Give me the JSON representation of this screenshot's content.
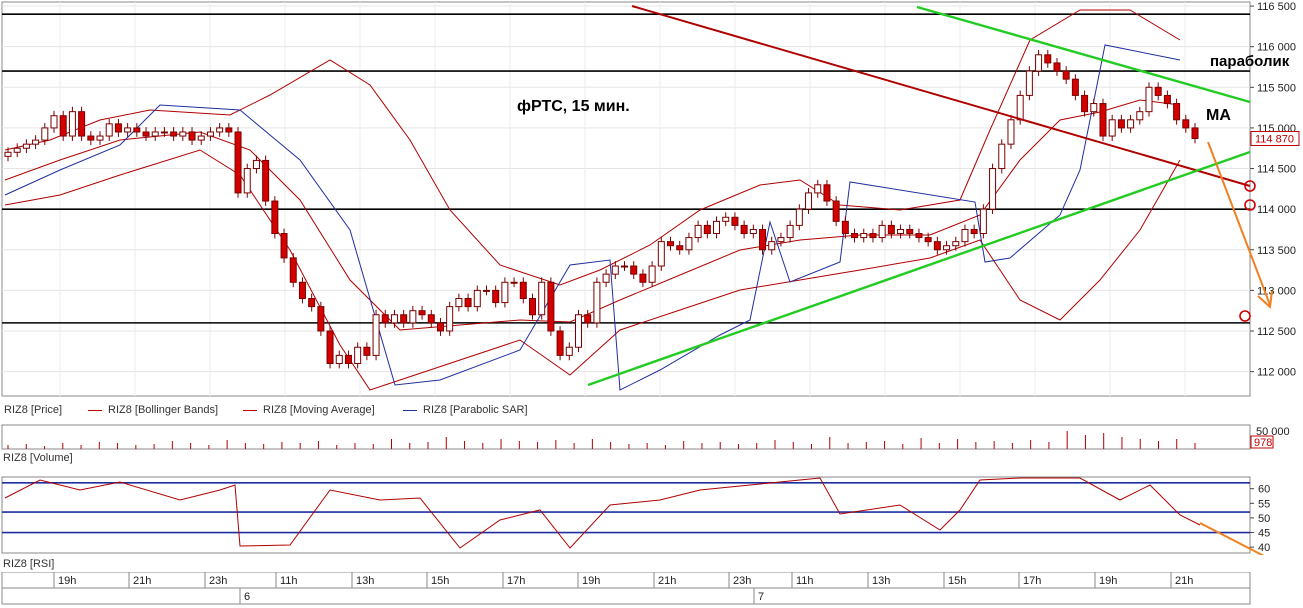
{
  "price_panel": {
    "y_ticks": [
      "116 500",
      "116 000",
      "115 500",
      "115 000",
      "114 500",
      "114 000",
      "113 500",
      "113 000",
      "112 500",
      "112 000"
    ],
    "last_price": "114 870",
    "legend": [
      {
        "label": "RIZ8 [Price]",
        "color": "#c00000"
      },
      {
        "label": "RIZ8 [Bollinger Bands]",
        "color": "#c00000"
      },
      {
        "label": "RIZ8 [Moving Average]",
        "color": "#c00000"
      },
      {
        "label": "RIZ8 [Parabolic SAR]",
        "color": "#1f2fa0"
      }
    ],
    "annotations": {
      "title": "фРТС, 15 мин.",
      "parabolic": "параболик",
      "ma": "МА"
    }
  },
  "volume_panel": {
    "label": "RIZ8 [Volume]",
    "y_tick": "50 000",
    "last_value": "978"
  },
  "rsi_panel": {
    "label": "RIZ8 [RSI]",
    "y_ticks": [
      "60",
      "55",
      "50",
      "45",
      "40"
    ]
  },
  "time_axis": {
    "hours": [
      "19h",
      "21h",
      "23h",
      "11h",
      "13h",
      "15h",
      "17h",
      "19h",
      "21h",
      "23h",
      "11h",
      "13h",
      "15h",
      "17h",
      "19h",
      "21h"
    ],
    "days": [
      "6",
      "7"
    ]
  },
  "chart_data": {
    "type": "candlestick",
    "instrument": "RIZ8",
    "ylim": [
      111700,
      116550
    ],
    "close": [
      114700,
      114750,
      114800,
      114850,
      115000,
      115150,
      114900,
      115200,
      114900,
      114850,
      114900,
      115050,
      114950,
      115000,
      114950,
      114900,
      114950,
      114950,
      114900,
      114950,
      114850,
      114900,
      114950,
      115000,
      114950,
      114200,
      114500,
      114600,
      114100,
      113700,
      113400,
      113100,
      112900,
      112800,
      112500,
      112100,
      112200,
      112100,
      112300,
      112200,
      112700,
      112600,
      112700,
      112600,
      112750,
      112700,
      112600,
      112500,
      112800,
      112900,
      112800,
      113000,
      113000,
      112850,
      113100,
      113100,
      112900,
      112700,
      113100,
      112500,
      112200,
      112300,
      112700,
      112600,
      113100,
      113200,
      113300,
      113300,
      113200,
      113100,
      113300,
      113600,
      113550,
      113500,
      113650,
      113800,
      113700,
      113850,
      113900,
      113800,
      113700,
      113750,
      113500,
      113600,
      113650,
      113800,
      114000,
      114200,
      114300,
      114100,
      113850,
      113700,
      113650,
      113700,
      113650,
      113800,
      113700,
      113750,
      113700,
      113650,
      113600,
      113500,
      113550,
      113600,
      113750,
      113700,
      114000,
      114500,
      114800,
      115100,
      115400,
      115700,
      115900,
      115800,
      115700,
      115600,
      115400,
      115200,
      115300,
      114900,
      115100,
      115000,
      115100,
      115200,
      115500,
      115400,
      115300,
      115100,
      115000,
      114870
    ],
    "parabolic_sar_polyline": [
      [
        5,
        195
      ],
      [
        60,
        170
      ],
      [
        120,
        145
      ],
      [
        160,
        105
      ],
      [
        240,
        110
      ],
      [
        300,
        160
      ],
      [
        350,
        230
      ],
      [
        395,
        385
      ],
      [
        440,
        380
      ],
      [
        520,
        350
      ],
      [
        570,
        265
      ],
      [
        610,
        260
      ],
      [
        620,
        390
      ],
      [
        660,
        370
      ],
      [
        720,
        335
      ],
      [
        750,
        320
      ],
      [
        770,
        222
      ],
      [
        790,
        282
      ],
      [
        840,
        262
      ],
      [
        850,
        182
      ],
      [
        975,
        202
      ],
      [
        985,
        262
      ],
      [
        1010,
        258
      ],
      [
        1060,
        215
      ],
      [
        1080,
        170
      ],
      [
        1105,
        45
      ],
      [
        1180,
        60
      ]
    ],
    "bollinger_upper_polyline": [
      [
        5,
        150
      ],
      [
        50,
        140
      ],
      [
        100,
        120
      ],
      [
        150,
        110
      ],
      [
        230,
        115
      ],
      [
        270,
        95
      ],
      [
        330,
        60
      ],
      [
        370,
        85
      ],
      [
        410,
        140
      ],
      [
        450,
        210
      ],
      [
        500,
        265
      ],
      [
        560,
        285
      ],
      [
        600,
        270
      ],
      [
        650,
        245
      ],
      [
        700,
        210
      ],
      [
        760,
        185
      ],
      [
        800,
        180
      ],
      [
        840,
        205
      ],
      [
        900,
        210
      ],
      [
        960,
        200
      ],
      [
        990,
        130
      ],
      [
        1030,
        40
      ],
      [
        1080,
        10
      ],
      [
        1130,
        10
      ],
      [
        1180,
        40
      ]
    ],
    "bollinger_lower_polyline": [
      [
        5,
        205
      ],
      [
        60,
        195
      ],
      [
        120,
        175
      ],
      [
        200,
        150
      ],
      [
        240,
        175
      ],
      [
        290,
        250
      ],
      [
        340,
        345
      ],
      [
        370,
        390
      ],
      [
        400,
        380
      ],
      [
        460,
        360
      ],
      [
        520,
        340
      ],
      [
        570,
        375
      ],
      [
        620,
        330
      ],
      [
        680,
        310
      ],
      [
        740,
        290
      ],
      [
        800,
        280
      ],
      [
        860,
        270
      ],
      [
        930,
        258
      ],
      [
        980,
        240
      ],
      [
        1020,
        300
      ],
      [
        1060,
        320
      ],
      [
        1100,
        280
      ],
      [
        1140,
        230
      ],
      [
        1180,
        160
      ]
    ],
    "moving_average_polyline": [
      [
        5,
        180
      ],
      [
        60,
        160
      ],
      [
        120,
        140
      ],
      [
        200,
        132
      ],
      [
        250,
        150
      ],
      [
        300,
        200
      ],
      [
        350,
        280
      ],
      [
        400,
        330
      ],
      [
        460,
        325
      ],
      [
        520,
        320
      ],
      [
        570,
        322
      ],
      [
        620,
        300
      ],
      [
        680,
        275
      ],
      [
        740,
        250
      ],
      [
        800,
        240
      ],
      [
        860,
        235
      ],
      [
        930,
        235
      ],
      [
        980,
        215
      ],
      [
        1020,
        160
      ],
      [
        1060,
        120
      ],
      [
        1100,
        112
      ],
      [
        1140,
        100
      ],
      [
        1180,
        105
      ]
    ],
    "horizontal_levels": [
      116400,
      115700,
      114000,
      112600
    ],
    "rsi_polyline": [
      [
        5,
        498
      ],
      [
        40,
        480
      ],
      [
        80,
        490
      ],
      [
        120,
        482
      ],
      [
        180,
        500
      ],
      [
        220,
        490
      ],
      [
        235,
        485
      ],
      [
        240,
        546
      ],
      [
        290,
        545
      ],
      [
        330,
        490
      ],
      [
        380,
        500
      ],
      [
        420,
        498
      ],
      [
        460,
        548
      ],
      [
        500,
        520
      ],
      [
        540,
        510
      ],
      [
        570,
        548
      ],
      [
        610,
        505
      ],
      [
        660,
        500
      ],
      [
        700,
        490
      ],
      [
        750,
        485
      ],
      [
        800,
        480
      ],
      [
        820,
        478
      ],
      [
        840,
        514
      ],
      [
        900,
        505
      ],
      [
        940,
        530
      ],
      [
        960,
        510
      ],
      [
        980,
        480
      ],
      [
        1020,
        478
      ],
      [
        1080,
        478
      ],
      [
        1120,
        500
      ],
      [
        1150,
        485
      ],
      [
        1180,
        515
      ],
      [
        1200,
        525
      ]
    ],
    "volume_bars": [
      0.2,
      0.25,
      0.15,
      0.3,
      0.2,
      0.35,
      0.3,
      0.2,
      0.25,
      0.4,
      0.3,
      0.2,
      0.45,
      0.3,
      0.25,
      0.35,
      0.3,
      0.4,
      0.2,
      0.3,
      0.25,
      0.5,
      0.3,
      0.35,
      0.6,
      0.4,
      0.3,
      0.5,
      0.4,
      0.35,
      0.45,
      0.3,
      0.5,
      0.35,
      0.25,
      0.3,
      0.2,
      0.4,
      0.3,
      0.35,
      0.25,
      0.3,
      0.45,
      0.35,
      0.25,
      0.6,
      0.3,
      0.35,
      0.4,
      0.25,
      0.55,
      0.3,
      0.5,
      0.35,
      0.4,
      0.3,
      0.45,
      0.35,
      0.9,
      0.7,
      0.8,
      0.6,
      0.5,
      0.4,
      0.5,
      0.3
    ]
  }
}
